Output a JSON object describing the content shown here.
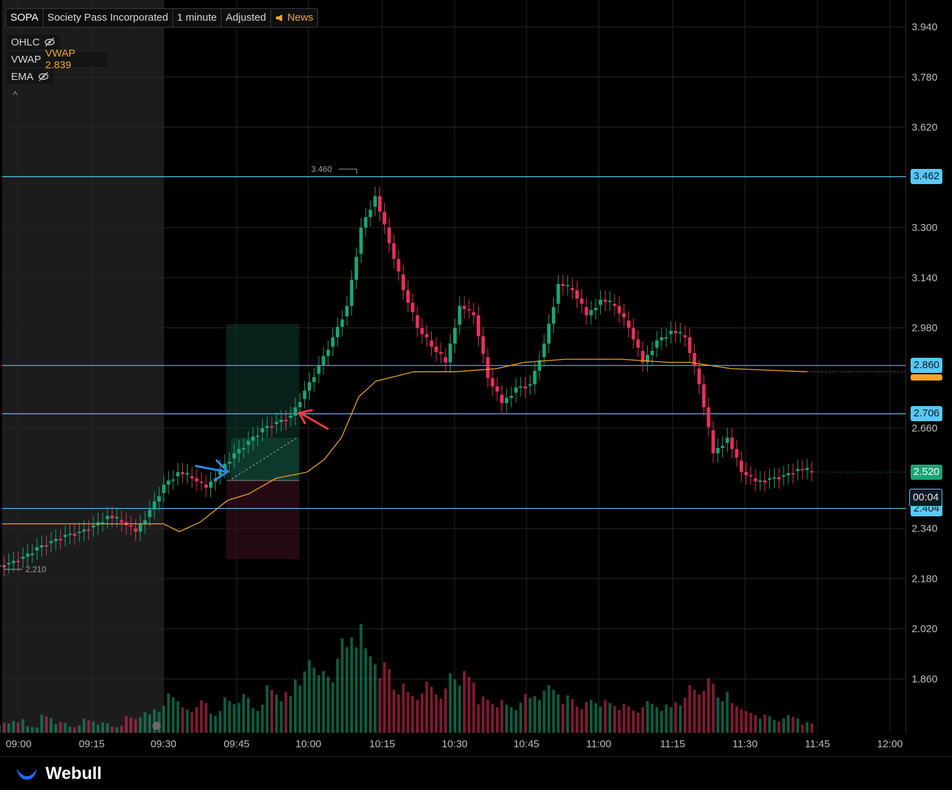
{
  "header": {
    "symbol": "SOPA",
    "company": "Society Pass Incorporated",
    "interval": "1 minute",
    "adjustment": "Adjusted",
    "news_label": "News"
  },
  "indicators": [
    {
      "label": "OHLC",
      "value": "",
      "icon": "eye-off-icon"
    },
    {
      "label": "VWAP",
      "value": "VWAP 2.839",
      "icon": ""
    },
    {
      "label": "EMA",
      "value": "",
      "icon": "eye-off-icon"
    }
  ],
  "collapse_symbol": "^",
  "price_axis": [
    "3.940",
    "3.780",
    "3.620",
    "3.300",
    "3.140",
    "2.980",
    "2.660",
    "2.340",
    "2.180",
    "2.020",
    "1.860"
  ],
  "time_axis": [
    "09:00",
    "09:15",
    "09:30",
    "09:45",
    "10:00",
    "10:15",
    "10:30",
    "10:45",
    "11:00",
    "11:15",
    "11:30",
    "11:45",
    "12:00"
  ],
  "price_labels": {
    "line_3462": "3.462",
    "line_2860": "2.860",
    "line_2706": "2.706",
    "line_2404": "2.404",
    "last": "2.520",
    "timer": "00:04"
  },
  "annotations": {
    "high": "3.460",
    "low": "2.210"
  },
  "footer": {
    "brand": "Webull"
  },
  "colors": {
    "up": "#1aa576",
    "down": "#e8305a",
    "vwap": "#f5a623",
    "hline": "#5ac8f5",
    "grid": "#262626",
    "premarket": "#1c1c1c"
  },
  "chart_data": {
    "type": "candlestick",
    "symbol": "SOPA",
    "ylim": [
      1.75,
      4.0
    ],
    "horizontal_lines": [
      3.462,
      2.86,
      2.706,
      2.404
    ],
    "last_price": 2.52,
    "vwap": 2.839,
    "high": 3.46,
    "low": 2.21,
    "closes_sampled": [
      2.23,
      2.25,
      2.28,
      2.3,
      2.32,
      2.33,
      2.35,
      2.38,
      2.36,
      2.33,
      2.4,
      2.48,
      2.52,
      2.5,
      2.47,
      2.53,
      2.58,
      2.62,
      2.66,
      2.68,
      2.7,
      2.78,
      2.86,
      2.95,
      3.05,
      3.3,
      3.4,
      3.25,
      3.1,
      2.98,
      2.92,
      2.87,
      3.05,
      3.02,
      2.82,
      2.74,
      2.79,
      2.8,
      2.93,
      3.12,
      3.1,
      3.02,
      3.07,
      3.05,
      2.98,
      2.87,
      2.94,
      2.97,
      2.95,
      2.8,
      2.58,
      2.63,
      2.52,
      2.49,
      2.5,
      2.51,
      2.53,
      2.52
    ],
    "volumes_sampled": [
      3,
      4,
      2,
      5,
      3,
      2,
      4,
      3,
      2,
      5,
      6,
      8,
      12,
      7,
      9,
      6,
      10,
      11,
      8,
      14,
      12,
      18,
      22,
      17,
      26,
      30,
      24,
      20,
      14,
      12,
      15,
      13,
      18,
      17,
      10,
      9,
      8,
      11,
      12,
      14,
      11,
      9,
      10,
      9,
      8,
      7,
      9,
      8,
      10,
      14,
      16,
      12,
      9,
      6,
      5,
      4,
      5,
      3
    ]
  }
}
